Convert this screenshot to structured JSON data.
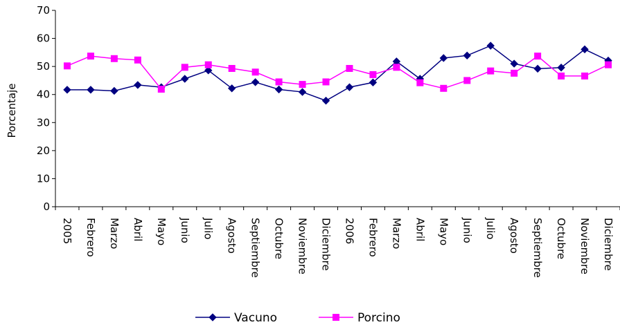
{
  "chart_data": {
    "type": "line",
    "title": "",
    "xlabel": "",
    "ylabel": "Porcentaje",
    "ylim": [
      0,
      70
    ],
    "yticks": [
      0,
      10,
      20,
      30,
      40,
      50,
      60,
      70
    ],
    "grid": false,
    "legend_position": "bottom",
    "categories": [
      "2005",
      "Febrero",
      "Marzo",
      "Abril",
      "Mayo",
      "Junio",
      "Julio",
      "Agosto",
      "Septiembre",
      "Octubre",
      "Noviembre",
      "Diciembre",
      "2006",
      "Febrero",
      "Marzo",
      "Abril",
      "Mayo",
      "Junio",
      "Julio",
      "Agosto",
      "Septiembre",
      "Octubre",
      "Noviembre",
      "Diciembre"
    ],
    "series": [
      {
        "name": "Vacuno",
        "color": "#000080",
        "marker": "diamond",
        "values": [
          41.7,
          41.7,
          41.3,
          43.4,
          42.6,
          45.6,
          48.6,
          42.2,
          44.4,
          41.8,
          40.9,
          37.8,
          42.6,
          44.3,
          51.8,
          45.6,
          53.0,
          53.9,
          57.4,
          51.0,
          49.2,
          49.6,
          56.1,
          52.1
        ]
      },
      {
        "name": "Porcino",
        "color": "#FF00FF",
        "marker": "square",
        "values": [
          50.2,
          53.7,
          52.8,
          52.3,
          41.9,
          49.7,
          50.6,
          49.3,
          48.0,
          44.5,
          43.6,
          44.5,
          49.3,
          47.1,
          49.7,
          44.2,
          42.2,
          45.0,
          48.4,
          47.6,
          53.7,
          46.6,
          46.6,
          50.6
        ]
      }
    ]
  }
}
